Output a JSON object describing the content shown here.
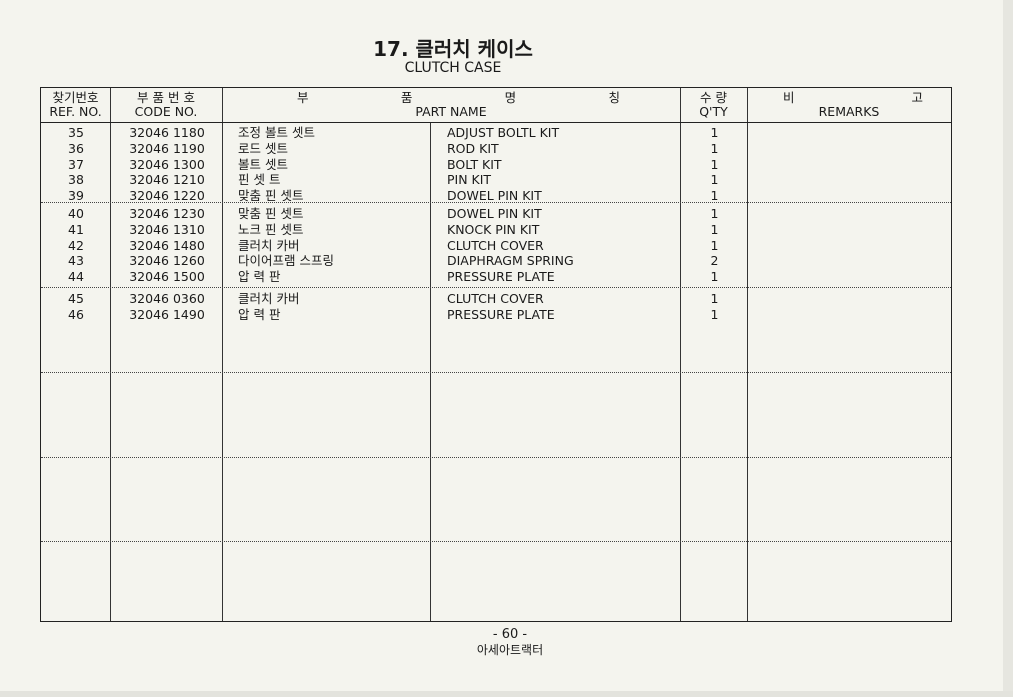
{
  "title": "17. 클러치 케이스",
  "subtitle": "CLUTCH CASE",
  "headers": {
    "ref_kr": "찾기번호",
    "ref_en": "REF. NO.",
    "code_kr": "부 품 번 호",
    "code_en": "CODE NO.",
    "name_kr": [
      "부",
      "품",
      "명",
      "칭"
    ],
    "name_en": "PART NAME",
    "qty_kr": "수 량",
    "qty_en": "Q'TY",
    "remarks_kr": [
      "비",
      "고"
    ],
    "remarks_en": "REMARKS"
  },
  "rows": [
    {
      "ref": "35",
      "code": "32046 1180",
      "name_kr": "조정 볼트 셋트",
      "name_en": "ADJUST BOLTL KIT",
      "qty": "1"
    },
    {
      "ref": "36",
      "code": "32046 1190",
      "name_kr": "로드 셋트",
      "name_en": "ROD KIT",
      "qty": "1"
    },
    {
      "ref": "37",
      "code": "32046 1300",
      "name_kr": "볼트 셋트",
      "name_en": "BOLT KIT",
      "qty": "1"
    },
    {
      "ref": "38",
      "code": "32046 1210",
      "name_kr": "핀 셋 트",
      "name_en": "PIN KIT",
      "qty": "1"
    },
    {
      "ref": "39",
      "code": "32046 1220",
      "name_kr": "맞춤 핀 셋트",
      "name_en": "DOWEL PIN KIT",
      "qty": "1"
    },
    {
      "ref": "40",
      "code": "32046 1230",
      "name_kr": "맞춤 핀 셋트",
      "name_en": "DOWEL PIN KIT",
      "qty": "1"
    },
    {
      "ref": "41",
      "code": "32046 1310",
      "name_kr": "노크 핀 셋트",
      "name_en": "KNOCK PIN KIT",
      "qty": "1"
    },
    {
      "ref": "42",
      "code": "32046 1480",
      "name_kr": "클러치 카버",
      "name_en": "CLUTCH COVER",
      "qty": "1"
    },
    {
      "ref": "43",
      "code": "32046 1260",
      "name_kr": "다이어프램 스프링",
      "name_en": "DIAPHRAGM SPRING",
      "qty": "2"
    },
    {
      "ref": "44",
      "code": "32046 1500",
      "name_kr": "압 력 판",
      "name_en": "PRESSURE PLATE",
      "qty": "1"
    },
    {
      "ref": "45",
      "code": "32046 0360",
      "name_kr": "클러치 카버",
      "name_en": "CLUTCH COVER",
      "qty": "1"
    },
    {
      "ref": "46",
      "code": "32046 1490",
      "name_kr": "압 력 판",
      "name_en": "PRESSURE PLATE",
      "qty": "1"
    }
  ],
  "footer": {
    "page": "- 60 -",
    "company": "아세아트랙터"
  }
}
